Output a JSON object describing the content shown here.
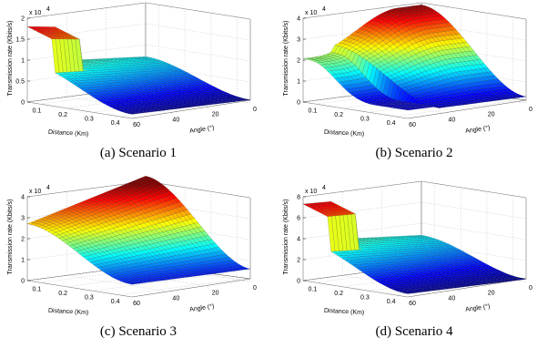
{
  "chart_data": [
    {
      "type": "surface",
      "caption": "(a) Scenario 1",
      "multiplier": "x 10",
      "multiplier_exp": "4",
      "zlabel": "Transmission rate (Kbits/s)",
      "xlabel": "Distance (Km)",
      "ylabel": "Angle (°)",
      "zlim": [
        0,
        2
      ],
      "zticks": [
        "0",
        "0.5",
        "1",
        "1.5",
        "2"
      ],
      "distance_ticks": [
        "0.1",
        "0.2",
        "0.3",
        "0.4"
      ],
      "angle_ticks": [
        "60",
        "40",
        "20",
        "0"
      ],
      "distance_range": [
        0.05,
        0.45
      ],
      "angle_range": [
        0,
        60
      ],
      "peak_rate": 1.8,
      "plateau_rate": 0.95,
      "min_rate": 0.1,
      "cliff_angle": 45,
      "cliff_distance": 0.15
    },
    {
      "type": "surface",
      "caption": "(b) Scenario 2",
      "multiplier": "x 10",
      "multiplier_exp": "4",
      "zlabel": "Transmission rate (Kbits/s)",
      "xlabel": "Distance (Km)",
      "ylabel": "Angle (°)",
      "zlim": [
        0,
        4
      ],
      "zticks": [
        "0",
        "1",
        "2",
        "3",
        "4"
      ],
      "distance_ticks": [
        "0.1",
        "0.2",
        "0.3",
        "0.4"
      ],
      "angle_ticks": [
        "60",
        "40",
        "20",
        "0"
      ],
      "distance_range": [
        0.05,
        0.45
      ],
      "angle_range": [
        0,
        60
      ],
      "peak_rate": 3.9,
      "min_rate": 0.3
    },
    {
      "type": "surface",
      "caption": "(c) Scenario 3",
      "multiplier": "x 10",
      "multiplier_exp": "4",
      "zlabel": "Transmission rate (Kbits/s)",
      "xlabel": "Distance (Km)",
      "ylabel": "Angle (°)",
      "zlim": [
        0,
        4
      ],
      "zticks": [
        "0",
        "1",
        "2",
        "3",
        "4"
      ],
      "distance_ticks": [
        "0.1",
        "0.2",
        "0.3",
        "0.4"
      ],
      "angle_ticks": [
        "60",
        "40",
        "20",
        "0"
      ],
      "distance_range": [
        0.05,
        0.45
      ],
      "angle_range": [
        0,
        60
      ],
      "peak_rate": 4.0,
      "min_rate": 0.6
    },
    {
      "type": "surface",
      "caption": "(d) Scenario 4",
      "multiplier": "x 10",
      "multiplier_exp": "4",
      "zlabel": "Transmission rate (Kbits/s)",
      "xlabel": "Distance (Km)",
      "ylabel": "Angle (°)",
      "zlim": [
        0,
        8
      ],
      "zticks": [
        "0",
        "2",
        "4",
        "6",
        "8"
      ],
      "distance_ticks": [
        "0.1",
        "0.2",
        "0.3",
        "0.4"
      ],
      "angle_ticks": [
        "60",
        "40",
        "20",
        "0"
      ],
      "distance_range": [
        0.05,
        0.45
      ],
      "angle_range": [
        0,
        60
      ],
      "peak_rate": 7.3,
      "plateau_rate": 3.8,
      "min_rate": 0.3,
      "cliff_angle": 45,
      "cliff_distance": 0.15
    }
  ]
}
